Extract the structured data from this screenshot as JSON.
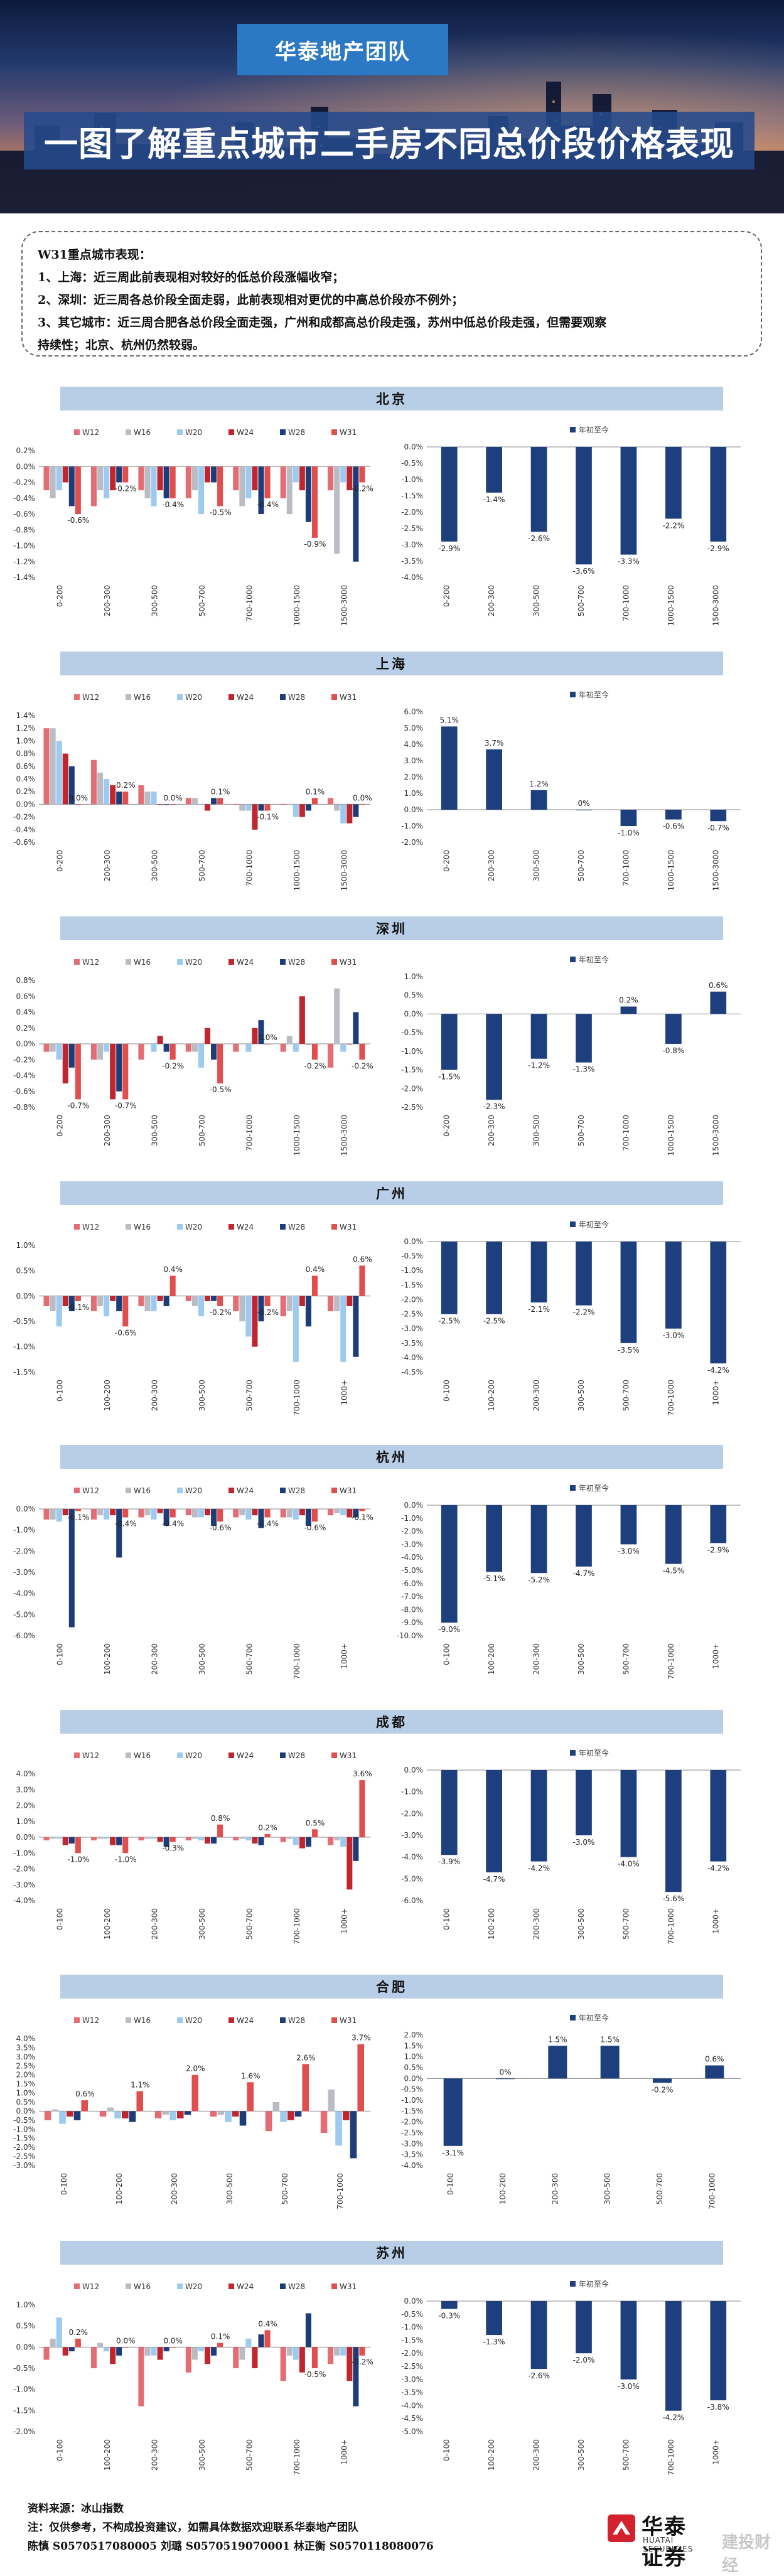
{
  "header": {
    "team": "华泰地产团队",
    "title": "一图了解重点城市二手房不同总价段价格表现"
  },
  "summary": {
    "lines": [
      "W31重点城市表现：",
      "1、上海：近三周此前表现相对较好的低总价段涨幅收窄；",
      "2、深圳：近三周各总价段全面走弱，此前表现相对更优的中高总价段亦不例外；",
      "3、其它城市：近三周合肥各总价段全面走强，广州和成都高总价段走强，苏州中低总价段走强，但需要观察",
      "持续性；北京、杭州仍然较弱。"
    ]
  },
  "colors": {
    "W12": "#e46c73",
    "W16": "#b9bcc4",
    "W20": "#9ccaf0",
    "W24": "#c0262d",
    "W28": "#1d3d78",
    "W31": "#e04e4e",
    "ytd": "#1e3f7e"
  },
  "legend": {
    "weeks": [
      "W12",
      "W16",
      "W20",
      "W24",
      "W28",
      "W31"
    ],
    "ytd": "年初至今"
  },
  "chart_data": [
    {
      "type": "bar",
      "city": "北京",
      "categories": [
        "0-200",
        "200-300",
        "300-500",
        "500-700",
        "700-1000",
        "1000-1500",
        "1500-3000"
      ],
      "series": [
        {
          "name": "W12",
          "values": [
            -0.3,
            -0.5,
            -0.3,
            -0.4,
            -0.3,
            -0.4,
            -0.3
          ]
        },
        {
          "name": "W16",
          "values": [
            -0.4,
            -0.3,
            -0.4,
            -0.3,
            -0.5,
            -0.6,
            -1.1
          ]
        },
        {
          "name": "W20",
          "values": [
            -0.3,
            -0.4,
            -0.5,
            -0.6,
            -0.4,
            -0.2,
            -0.2
          ]
        },
        {
          "name": "W24",
          "values": [
            -0.2,
            -0.3,
            -0.3,
            -0.2,
            -0.3,
            -0.3,
            -0.3
          ]
        },
        {
          "name": "W28",
          "values": [
            -0.5,
            -0.2,
            -0.4,
            -0.2,
            -0.6,
            -0.7,
            -1.2
          ]
        },
        {
          "name": "W31",
          "values": [
            -0.6,
            -0.2,
            -0.4,
            -0.5,
            -0.4,
            -0.9,
            -0.2
          ]
        }
      ],
      "labels": [
        "-0.6%",
        "-0.2%",
        "-0.4%",
        "-0.5%",
        "-0.4%",
        "-0.9%",
        "-0.2%"
      ],
      "ylim": [
        -1.4,
        0.2
      ],
      "yticks": [
        0.2,
        0,
        -0.2,
        -0.4,
        -0.6,
        -0.8,
        -1.0,
        -1.2,
        -1.4
      ],
      "ytd": [
        -2.9,
        -1.4,
        -2.6,
        -3.6,
        -3.3,
        -2.2,
        -2.9
      ],
      "ytd_ylim": [
        -4.0,
        0.0
      ],
      "ytd_yticks": [
        0,
        -0.5,
        -1.0,
        -1.5,
        -2.0,
        -2.5,
        -3.0,
        -3.5,
        -4.0
      ]
    },
    {
      "type": "bar",
      "city": "上海",
      "categories": [
        "0-200",
        "200-300",
        "300-500",
        "500-700",
        "700-1000",
        "1000-1500",
        "1500-3000"
      ],
      "series": [
        {
          "name": "W12",
          "values": [
            1.2,
            0.7,
            0.3,
            0.1,
            0.0,
            0.0,
            0.1
          ]
        },
        {
          "name": "W16",
          "values": [
            1.2,
            0.5,
            0.2,
            0.1,
            -0.1,
            0.0,
            -0.1
          ]
        },
        {
          "name": "W20",
          "values": [
            1.0,
            0.4,
            0.2,
            0.0,
            -0.1,
            -0.2,
            -0.3
          ]
        },
        {
          "name": "W24",
          "values": [
            0.8,
            0.3,
            0.0,
            -0.1,
            -0.4,
            -0.2,
            -0.3
          ]
        },
        {
          "name": "W28",
          "values": [
            0.6,
            0.2,
            0.0,
            0.1,
            -0.1,
            -0.1,
            -0.2
          ]
        },
        {
          "name": "W31",
          "values": [
            0.0,
            0.2,
            0.0,
            0.1,
            -0.1,
            0.1,
            0.0
          ]
        }
      ],
      "labels": [
        "0.0%",
        "0.2%",
        "0.0%",
        "0.1%",
        "-0.1%",
        "0.1%",
        "0.0%"
      ],
      "ylim": [
        -0.6,
        1.4
      ],
      "yticks": [
        1.4,
        1.2,
        1.0,
        0.8,
        0.6,
        0.4,
        0.2,
        0,
        -0.2,
        -0.4,
        -0.6
      ],
      "ytd": [
        5.1,
        3.7,
        1.2,
        0.0,
        -1.0,
        -0.6,
        -0.7
      ],
      "ytd_ylim": [
        -2.0,
        6.0
      ],
      "ytd_yticks": [
        6,
        5,
        4,
        3,
        2,
        1,
        0,
        -1,
        -2
      ]
    },
    {
      "type": "bar",
      "city": "深圳",
      "categories": [
        "0-200",
        "200-300",
        "300-500",
        "500-700",
        "700-1000",
        "1000-1500",
        "1500-3000"
      ],
      "series": [
        {
          "name": "W12",
          "values": [
            -0.1,
            -0.2,
            -0.2,
            -0.1,
            -0.1,
            -0.1,
            -0.3
          ]
        },
        {
          "name": "W16",
          "values": [
            -0.1,
            -0.2,
            0.0,
            -0.1,
            0.0,
            0.1,
            0.7
          ]
        },
        {
          "name": "W20",
          "values": [
            -0.2,
            -0.1,
            -0.1,
            -0.3,
            -0.1,
            -0.1,
            -0.1
          ]
        },
        {
          "name": "W24",
          "values": [
            -0.5,
            -0.7,
            0.1,
            0.2,
            0.2,
            0.6,
            0.0
          ]
        },
        {
          "name": "W28",
          "values": [
            -0.3,
            -0.6,
            -0.1,
            -0.2,
            0.3,
            0.0,
            0.4
          ]
        },
        {
          "name": "W31",
          "values": [
            -0.7,
            -0.7,
            -0.2,
            -0.5,
            0.0,
            -0.2,
            -0.2
          ]
        }
      ],
      "labels": [
        "-0.7%",
        "-0.7%",
        "-0.2%",
        "-0.5%",
        "0.0%",
        "-0.2%",
        "-0.2%"
      ],
      "ylim": [
        -0.8,
        0.8
      ],
      "yticks": [
        0.8,
        0.6,
        0.4,
        0.2,
        0,
        -0.2,
        -0.4,
        -0.6,
        -0.8
      ],
      "ytd": [
        -1.5,
        -2.3,
        -1.2,
        -1.3,
        0.2,
        -0.8,
        0.6
      ],
      "ytd_ylim": [
        -2.5,
        1.0
      ],
      "ytd_yticks": [
        1,
        0.5,
        0,
        -0.5,
        -1.0,
        -1.5,
        -2.0,
        -2.5
      ]
    },
    {
      "type": "bar",
      "city": "广州",
      "categories": [
        "0-100",
        "100-200",
        "200-300",
        "300-500",
        "500-700",
        "700-1000",
        "1000+"
      ],
      "series": [
        {
          "name": "W12",
          "values": [
            -0.2,
            -0.3,
            -0.2,
            -0.1,
            -0.3,
            -0.4,
            -0.3
          ]
        },
        {
          "name": "W16",
          "values": [
            -0.3,
            -0.2,
            -0.3,
            -0.2,
            -0.5,
            -0.3,
            -0.3
          ]
        },
        {
          "name": "W20",
          "values": [
            -0.6,
            -0.4,
            -0.3,
            -0.4,
            -0.8,
            -1.3,
            -1.3
          ]
        },
        {
          "name": "W24",
          "values": [
            -0.2,
            -0.1,
            -0.1,
            -0.1,
            -1.0,
            -0.2,
            -0.2
          ]
        },
        {
          "name": "W28",
          "values": [
            -0.3,
            -0.3,
            -0.2,
            -0.1,
            -0.5,
            -0.6,
            -1.2
          ]
        },
        {
          "name": "W31",
          "values": [
            -0.1,
            -0.6,
            0.4,
            -0.2,
            -0.2,
            0.4,
            0.6
          ]
        }
      ],
      "labels": [
        "-0.1%",
        "-0.6%",
        "0.4%",
        "-0.2%",
        "-0.2%",
        "0.4%",
        "0.6%"
      ],
      "ylim": [
        -1.5,
        1.0
      ],
      "yticks": [
        1.0,
        0.5,
        0,
        -0.5,
        -1.0,
        -1.5
      ],
      "ytd": [
        -2.5,
        -2.5,
        -2.1,
        -2.2,
        -3.5,
        -3.0,
        -4.2
      ],
      "ytd_ylim": [
        -4.5,
        0.0
      ],
      "ytd_yticks": [
        0,
        -0.5,
        -1.0,
        -1.5,
        -2.0,
        -2.5,
        -3.0,
        -3.5,
        -4.0,
        -4.5
      ]
    },
    {
      "type": "bar",
      "city": "杭州",
      "categories": [
        "0-100",
        "100-200",
        "200-300",
        "300-500",
        "500-700",
        "700-1000",
        "1000+"
      ],
      "series": [
        {
          "name": "W12",
          "values": [
            -0.5,
            -0.5,
            -0.4,
            -0.3,
            -0.4,
            -0.4,
            -0.3
          ]
        },
        {
          "name": "W16",
          "values": [
            -0.5,
            -0.3,
            -0.3,
            -0.4,
            -0.3,
            -0.4,
            -0.2
          ]
        },
        {
          "name": "W20",
          "values": [
            -0.6,
            -0.5,
            -0.5,
            -0.4,
            -0.5,
            -0.5,
            -0.3
          ]
        },
        {
          "name": "W24",
          "values": [
            -0.3,
            -0.3,
            -0.2,
            -0.3,
            -0.3,
            -0.3,
            -0.4
          ]
        },
        {
          "name": "W28",
          "values": [
            -5.6,
            -2.3,
            -0.8,
            -0.8,
            -0.9,
            -0.8,
            -0.4
          ]
        },
        {
          "name": "W31",
          "values": [
            -0.1,
            -0.4,
            -0.4,
            -0.6,
            -0.4,
            -0.6,
            -0.1
          ]
        }
      ],
      "labels": [
        "-0.1%",
        "-0.4%",
        "-0.4%",
        "-0.6%",
        "-0.4%",
        "-0.6%",
        "-0.1%"
      ],
      "ylim": [
        -6.0,
        0.0
      ],
      "yticks": [
        0,
        -1,
        -2,
        -3,
        -4,
        -5,
        -6
      ],
      "ytd": [
        -9.0,
        -5.1,
        -5.2,
        -4.7,
        -3.0,
        -4.5,
        -2.9
      ],
      "ytd_ylim": [
        -10.0,
        0.0
      ],
      "ytd_yticks": [
        0,
        -1,
        -2,
        -3,
        -4,
        -5,
        -6,
        -7,
        -8,
        -9,
        -10
      ]
    },
    {
      "type": "bar",
      "city": "成都",
      "categories": [
        "0-100",
        "100-200",
        "200-300",
        "300-500",
        "500-700",
        "700-1000",
        "1000+"
      ],
      "series": [
        {
          "name": "W12",
          "values": [
            -0.2,
            -0.2,
            -0.2,
            -0.2,
            -0.2,
            -0.3,
            -0.5
          ]
        },
        {
          "name": "W16",
          "values": [
            -0.1,
            -0.1,
            -0.1,
            -0.1,
            -0.1,
            -0.1,
            -0.2
          ]
        },
        {
          "name": "W20",
          "values": [
            -0.1,
            -0.1,
            -0.1,
            -0.2,
            -0.2,
            -0.5,
            -0.6
          ]
        },
        {
          "name": "W24",
          "values": [
            -0.5,
            -0.5,
            -0.3,
            -0.4,
            -0.4,
            -0.7,
            -3.3
          ]
        },
        {
          "name": "W28",
          "values": [
            -0.4,
            -0.5,
            -0.6,
            -0.4,
            -0.5,
            -0.6,
            -1.5
          ]
        },
        {
          "name": "W31",
          "values": [
            -1.0,
            -1.0,
            -0.3,
            0.8,
            0.2,
            0.5,
            3.6
          ]
        }
      ],
      "labels": [
        "-1.0%",
        "-1.0%",
        "-0.3%",
        "0.8%",
        "0.2%",
        "0.5%",
        "3.6%"
      ],
      "ylim": [
        -4.0,
        4.0
      ],
      "yticks": [
        4,
        3,
        2,
        1,
        0,
        -1,
        -2,
        -3,
        -4
      ],
      "ytd": [
        -3.9,
        -4.7,
        -4.2,
        -3.0,
        -4.0,
        -5.6,
        -4.2
      ],
      "ytd_ylim": [
        -6.0,
        0.0
      ],
      "ytd_yticks": [
        0,
        -1,
        -2,
        -3,
        -4,
        -5,
        -6
      ]
    },
    {
      "type": "bar",
      "city": "合肥",
      "categories": [
        "0-100",
        "100-200",
        "200-300",
        "300-500",
        "500-700",
        "700-1000"
      ],
      "series": [
        {
          "name": "W12",
          "values": [
            -0.5,
            -0.3,
            -0.4,
            -0.3,
            -1.1,
            -1.2
          ]
        },
        {
          "name": "W16",
          "values": [
            0.1,
            0.2,
            -0.2,
            -0.2,
            0.5,
            1.2
          ]
        },
        {
          "name": "W20",
          "values": [
            -0.7,
            -0.4,
            -0.5,
            -0.6,
            -0.6,
            -1.9
          ]
        },
        {
          "name": "W24",
          "values": [
            -0.3,
            -0.4,
            -0.4,
            -0.3,
            -0.5,
            -0.5
          ]
        },
        {
          "name": "W28",
          "values": [
            -0.5,
            -0.6,
            -0.2,
            -0.8,
            -0.3,
            -2.6
          ]
        },
        {
          "name": "W31",
          "values": [
            0.6,
            1.1,
            2.0,
            1.6,
            2.6,
            3.7
          ]
        }
      ],
      "labels": [
        "0.6%",
        "1.1%",
        "2.0%",
        "1.6%",
        "2.6%",
        "3.7%"
      ],
      "ylim": [
        -3.0,
        4.0
      ],
      "yticks": [
        4,
        3.5,
        3,
        2.5,
        2,
        1.5,
        1,
        0.5,
        0,
        -0.5,
        -1,
        -1.5,
        -2,
        -2.5,
        -3
      ],
      "ytd": [
        -3.1,
        0.0,
        1.5,
        1.5,
        -0.2,
        0.6
      ],
      "ytd_ylim": [
        -4.0,
        2.0
      ],
      "ytd_yticks": [
        2,
        1.5,
        1,
        0.5,
        0,
        -0.5,
        -1,
        -1.5,
        -2,
        -2.5,
        -3,
        -3.5,
        -4
      ]
    },
    {
      "type": "bar",
      "city": "苏州",
      "categories": [
        "0-100",
        "100-200",
        "200-300",
        "300-500",
        "500-700",
        "700-1000",
        "1000+"
      ],
      "series": [
        {
          "name": "W12",
          "values": [
            -0.3,
            -0.5,
            -1.4,
            -0.6,
            -0.5,
            -0.8,
            -0.4
          ]
        },
        {
          "name": "W16",
          "values": [
            0.2,
            0.1,
            -0.2,
            -0.3,
            -0.3,
            -0.2,
            -0.2
          ]
        },
        {
          "name": "W20",
          "values": [
            0.7,
            -0.1,
            -0.2,
            -0.1,
            0.2,
            -0.3,
            -0.2
          ]
        },
        {
          "name": "W24",
          "values": [
            -0.2,
            -0.4,
            -0.3,
            -0.4,
            -0.5,
            -0.6,
            -0.8
          ]
        },
        {
          "name": "W28",
          "values": [
            -0.1,
            -0.2,
            -0.1,
            -0.2,
            0.3,
            0.8,
            -1.4
          ]
        },
        {
          "name": "W31",
          "values": [
            0.2,
            0.0,
            0.0,
            0.1,
            0.4,
            -0.5,
            -0.2
          ]
        }
      ],
      "labels": [
        "0.2%",
        "0.0%",
        "0.0%",
        "0.1%",
        "0.4%",
        "-0.5%",
        "-0.2%"
      ],
      "ylim": [
        -2.0,
        1.0
      ],
      "yticks": [
        1,
        0.5,
        0,
        -0.5,
        -1,
        -1.5,
        -2
      ],
      "ytd": [
        -0.3,
        -1.3,
        -2.6,
        -2.0,
        -3.0,
        -4.2,
        -3.8
      ],
      "ytd_ylim": [
        -5.0,
        0.0
      ],
      "ytd_yticks": [
        0,
        -0.5,
        -1,
        -1.5,
        -2,
        -2.5,
        -3,
        -3.5,
        -4,
        -4.5,
        -5
      ]
    }
  ],
  "footer": {
    "source": "资料来源：冰山指数",
    "note": "注：仅供参考，不构成投资建议，如需具体数据欢迎联系华泰地产团队",
    "authors": "陈慎 S0570517080005 刘璐 S0570519070001 林正衡 S0570118080076"
  },
  "logo": {
    "cn": "华泰证券",
    "en": "HUATAI SECURITIES",
    "watermark": "建投财经"
  }
}
